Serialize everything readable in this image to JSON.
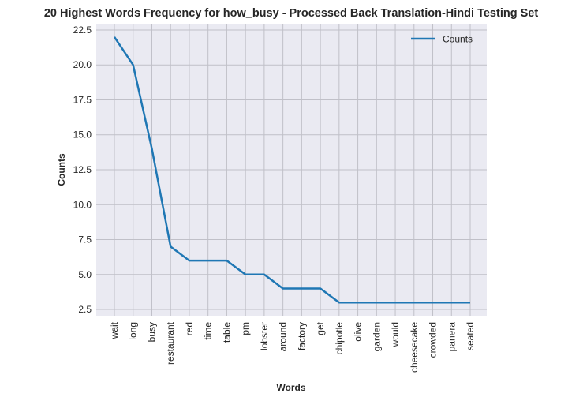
{
  "chart_data": {
    "type": "line",
    "title": "20 Highest Words Frequency for how_busy - Processed Back Translation-Hindi Testing Set",
    "xlabel": "Words",
    "ylabel": "Counts",
    "categories": [
      "wait",
      "long",
      "busy",
      "restaurant",
      "red",
      "time",
      "table",
      "pm",
      "lobster",
      "around",
      "factory",
      "get",
      "chipotle",
      "olive",
      "garden",
      "would",
      "cheesecake",
      "crowded",
      "panera",
      "seated"
    ],
    "series": [
      {
        "name": "Counts",
        "values": [
          22,
          20,
          14,
          7,
          6,
          6,
          6,
          5,
          5,
          4,
          4,
          4,
          3,
          3,
          3,
          3,
          3,
          3,
          3,
          3
        ],
        "color": "#1f77b4"
      }
    ],
    "yticks": [
      "2.5",
      "5.0",
      "7.5",
      "10.0",
      "12.5",
      "15.0",
      "17.5",
      "20.0",
      "22.5"
    ],
    "ylim": [
      2.05,
      22.95
    ],
    "grid": true,
    "legend": "top-right",
    "background": "#eaeaf2",
    "grid_color": "#c0c0c8"
  }
}
